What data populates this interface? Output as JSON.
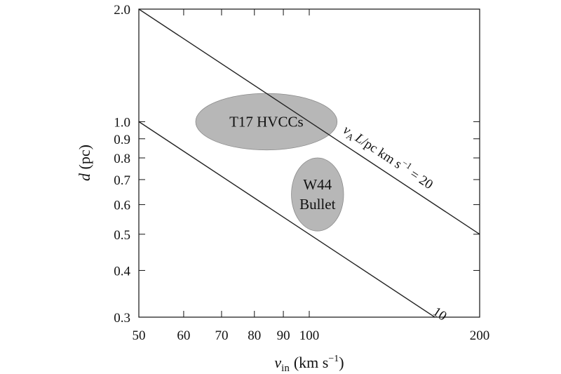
{
  "chart_data": {
    "type": "line",
    "x_scale": "log",
    "y_scale": "log",
    "xlim": [
      50,
      200
    ],
    "ylim": [
      0.3,
      2.0
    ],
    "xlabel_var": "v",
    "xlabel_sub": "in",
    "xlabel_unit": "(km s",
    "xlabel_exp": "−1",
    "xlabel_close": ")",
    "ylabel_var": "d",
    "ylabel_unit": " (pc)",
    "x_ticks": [
      50,
      60,
      70,
      80,
      90,
      100,
      200
    ],
    "y_ticks": [
      0.3,
      0.4,
      0.5,
      0.6,
      0.7,
      0.8,
      0.9,
      1.0,
      2.0
    ],
    "x_tick_labels": [
      "50",
      "60",
      "70",
      "80",
      "90",
      "100",
      "200"
    ],
    "y_tick_labels": [
      "0.3",
      "0.4",
      "0.5",
      "0.6",
      "0.7",
      "0.8",
      "0.9",
      "1.0",
      "2.0"
    ],
    "series": [
      {
        "label": "v_A L / pc km s^-1 = 20",
        "x": [
          50,
          200
        ],
        "y": [
          2.0,
          0.5
        ]
      },
      {
        "label": "10",
        "x": [
          50,
          200
        ],
        "y": [
          1.0,
          0.25
        ]
      }
    ],
    "line_labels": {
      "upper_var": "v",
      "upper_sub": "A",
      "upper_rest": "L",
      "upper_unit": "/pc km s",
      "upper_exp": "−1",
      "upper_eq": " = 20",
      "lower": "10"
    },
    "regions": [
      {
        "name": "T17 HVCCs",
        "lines": [
          "T17 HVCCs"
        ],
        "x_range": [
          63,
          112
        ],
        "y_range": [
          0.84,
          1.19
        ],
        "color": "#b7b7b7"
      },
      {
        "name": "W44 Bullet",
        "lines": [
          "W44",
          "Bullet"
        ],
        "x_range": [
          93,
          115
        ],
        "y_range": [
          0.51,
          0.8
        ],
        "color": "#b7b7b7"
      }
    ],
    "grid": false
  }
}
